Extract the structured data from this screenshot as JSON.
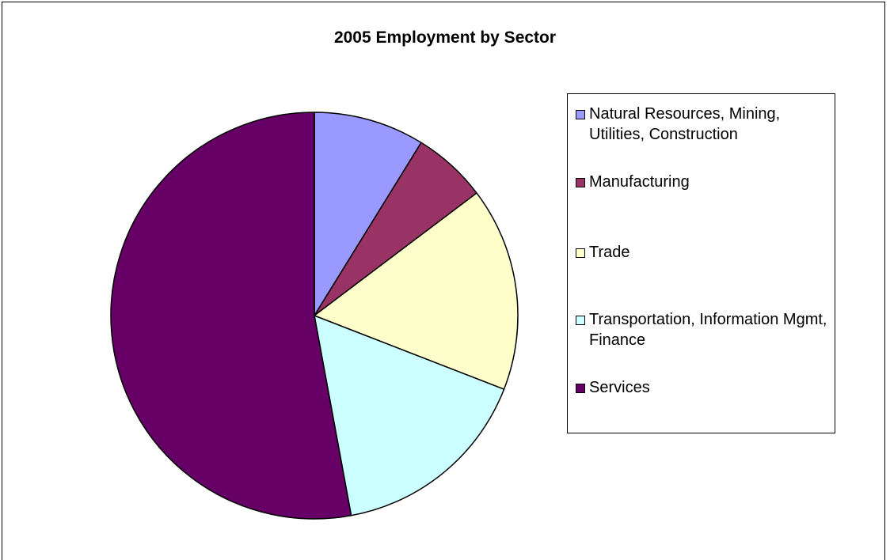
{
  "chart_data": {
    "type": "pie",
    "title": "2005 Employment by Sector",
    "legend_position": "right",
    "slices": [
      {
        "label": "Natural Resources, Mining, Utilities, Construction",
        "value": 8.8,
        "color": "#9999ff"
      },
      {
        "label": "Manufacturing",
        "value": 5.9,
        "color": "#993366"
      },
      {
        "label": "Trade",
        "value": 16.2,
        "color": "#ffffcc"
      },
      {
        "label": "Transportation, Information Mgmt, Finance",
        "value": 16.2,
        "color": "#ccffff"
      },
      {
        "label": "Services",
        "value": 52.9,
        "color": "#660066"
      }
    ]
  }
}
